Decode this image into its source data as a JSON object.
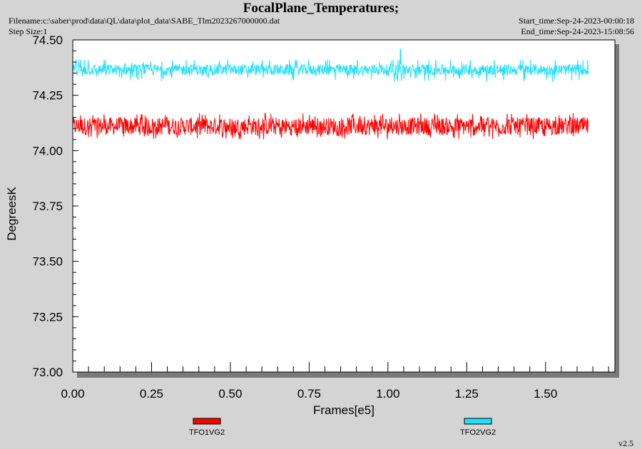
{
  "header": {
    "title": "FocalPlane_Temperatures;",
    "filename": "Filename:c:\\saber\\prod\\data\\QL\\data\\plot_data\\SABE_Tlm2023267000000.dat",
    "step_size": "Step Size:1",
    "start_time": "Start_time:Sep-24-2023-00:00:18",
    "end_time": "End_time:Sep-24-2023-15:08:56"
  },
  "footer": {
    "version": "v2.5"
  },
  "chart_data": {
    "type": "line",
    "title": "FocalPlane_Temperatures;",
    "xlabel": "Frames[e5]",
    "ylabel": "DegreesK",
    "xlim": [
      0.0,
      1.72
    ],
    "ylim": [
      73.0,
      74.5
    ],
    "x_ticks": [
      "0.00",
      "0.25",
      "0.50",
      "0.75",
      "1.00",
      "1.25",
      "1.50"
    ],
    "y_ticks": [
      "73.00",
      "73.25",
      "73.50",
      "73.75",
      "74.00",
      "74.25",
      "74.50"
    ],
    "grid": false,
    "legend_position": "bottom",
    "series": [
      {
        "name": "TFO1VG2",
        "color": "#ff0000",
        "x_range": [
          0.0,
          1.635
        ],
        "mean": 74.11,
        "band_low": 74.07,
        "band_high": 74.15,
        "min": 74.05,
        "max": 74.17
      },
      {
        "name": "TFO2VG2",
        "color": "#22e0ff",
        "x_range": [
          0.0,
          1.635
        ],
        "mean": 74.365,
        "band_low": 74.34,
        "band_high": 74.39,
        "min": 74.31,
        "max": 74.46,
        "spike_x": 1.04,
        "spike_y": 74.46
      }
    ]
  }
}
